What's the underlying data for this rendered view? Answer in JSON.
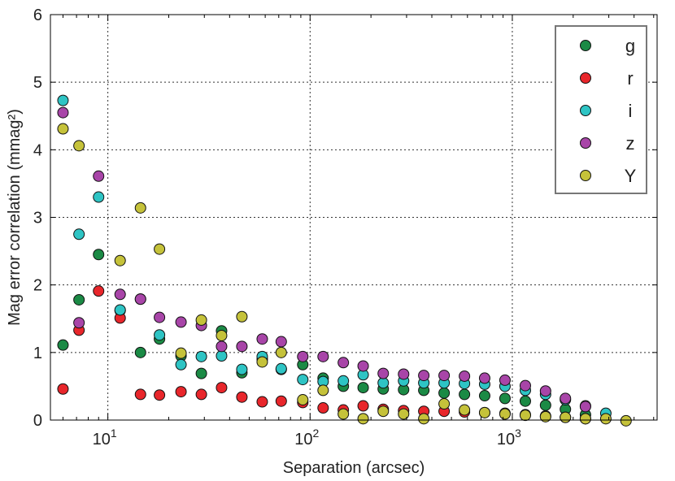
{
  "chart_data": {
    "type": "scatter",
    "xlabel": "Separation (arcsec)",
    "ylabel": "Mag error correlation (mmag²)",
    "x_scale": "log",
    "xlim": [
      5.2,
      5200
    ],
    "ylim": [
      0,
      6
    ],
    "y_ticks": [
      "0",
      "1",
      "2",
      "3",
      "4",
      "5",
      "6"
    ],
    "x_ticks": [
      {
        "value": 10,
        "base": "10",
        "exp": "1"
      },
      {
        "value": 100,
        "base": "10",
        "exp": "2"
      },
      {
        "value": 1000,
        "base": "10",
        "exp": "3"
      }
    ],
    "grid": true,
    "legend_position": "top-right",
    "x": [
      6,
      7.2,
      9,
      11.5,
      14.5,
      18,
      23,
      29,
      36.5,
      46,
      58,
      72,
      92,
      116,
      146,
      183,
      230,
      290,
      365,
      460,
      580,
      730,
      920,
      1160,
      1460,
      1830,
      2300,
      2900,
      3650
    ],
    "series": [
      {
        "name": "g",
        "color": "#1b8a45",
        "x": [
          6,
          7.2,
          9,
          11.5,
          14.5,
          18,
          23,
          29,
          36.5,
          46,
          58,
          72,
          92,
          116,
          146,
          183,
          230,
          290,
          365,
          460,
          580,
          730,
          920,
          1160,
          1460,
          1830,
          2300
        ],
        "values": [
          1.11,
          1.78,
          2.45,
          1.62,
          1.0,
          1.2,
          0.95,
          0.69,
          1.32,
          0.7,
          0.9,
          0.75,
          0.82,
          0.62,
          0.5,
          0.48,
          0.46,
          0.45,
          0.44,
          0.4,
          0.38,
          0.36,
          0.32,
          0.28,
          0.22,
          0.16,
          0.08
        ]
      },
      {
        "name": "r",
        "color": "#e8262b",
        "x": [
          6,
          7.2,
          9,
          11.5,
          14.5,
          18,
          23,
          29,
          36.5,
          46,
          58,
          72,
          92,
          116,
          146,
          183,
          230,
          290,
          365,
          460,
          580,
          730,
          920,
          1160,
          1460,
          1830,
          2300
        ],
        "values": [
          0.46,
          1.33,
          1.91,
          1.51,
          0.38,
          0.37,
          0.42,
          0.38,
          0.48,
          0.34,
          0.27,
          0.28,
          0.26,
          0.18,
          0.15,
          0.21,
          0.16,
          0.14,
          0.13,
          0.13,
          0.12,
          0.11,
          0.1,
          0.08,
          0.06,
          0.04,
          0.02
        ]
      },
      {
        "name": "i",
        "color": "#2ec4c4",
        "x": [
          6,
          7.2,
          9,
          11.5,
          14.5,
          18,
          23,
          29,
          36.5,
          46,
          58,
          72,
          92,
          116,
          146,
          183,
          230,
          290,
          365,
          460,
          580,
          730,
          920,
          1160,
          1460,
          1830,
          2300,
          2900
        ],
        "values": [
          4.73,
          2.75,
          3.3,
          1.63,
          1.79,
          1.26,
          0.82,
          0.94,
          0.95,
          0.75,
          0.94,
          0.76,
          0.6,
          0.57,
          0.58,
          0.67,
          0.55,
          0.58,
          0.55,
          0.55,
          0.54,
          0.53,
          0.5,
          0.44,
          0.38,
          0.3,
          0.21,
          0.1
        ]
      },
      {
        "name": "z",
        "color": "#a845a8",
        "x": [
          6,
          7.2,
          9,
          11.5,
          14.5,
          18,
          23,
          29,
          36.5,
          46,
          58,
          72,
          92,
          116,
          146,
          183,
          230,
          290,
          365,
          460,
          580,
          730,
          920,
          1160,
          1460,
          1830,
          2300
        ],
        "values": [
          4.55,
          1.44,
          3.61,
          1.86,
          1.79,
          1.52,
          1.45,
          1.4,
          1.09,
          1.09,
          1.2,
          1.16,
          0.94,
          0.94,
          0.85,
          0.8,
          0.69,
          0.68,
          0.66,
          0.66,
          0.65,
          0.62,
          0.59,
          0.51,
          0.43,
          0.32,
          0.2
        ]
      },
      {
        "name": "Y",
        "color": "#c5c23a",
        "x": [
          6,
          7.2,
          11.5,
          14.5,
          18,
          23,
          29,
          36.5,
          46,
          58,
          72,
          92,
          116,
          146,
          183,
          230,
          290,
          365,
          460,
          580,
          730,
          920,
          1160,
          1460,
          1830,
          2300,
          2900,
          3650
        ],
        "values": [
          4.31,
          4.06,
          2.36,
          3.14,
          2.53,
          0.99,
          1.48,
          1.25,
          1.53,
          0.86,
          1.0,
          0.3,
          0.44,
          0.09,
          0.02,
          0.13,
          0.09,
          0.02,
          0.24,
          0.15,
          0.11,
          0.09,
          0.07,
          0.05,
          0.04,
          0.02,
          0.02,
          -0.01
        ]
      }
    ]
  }
}
